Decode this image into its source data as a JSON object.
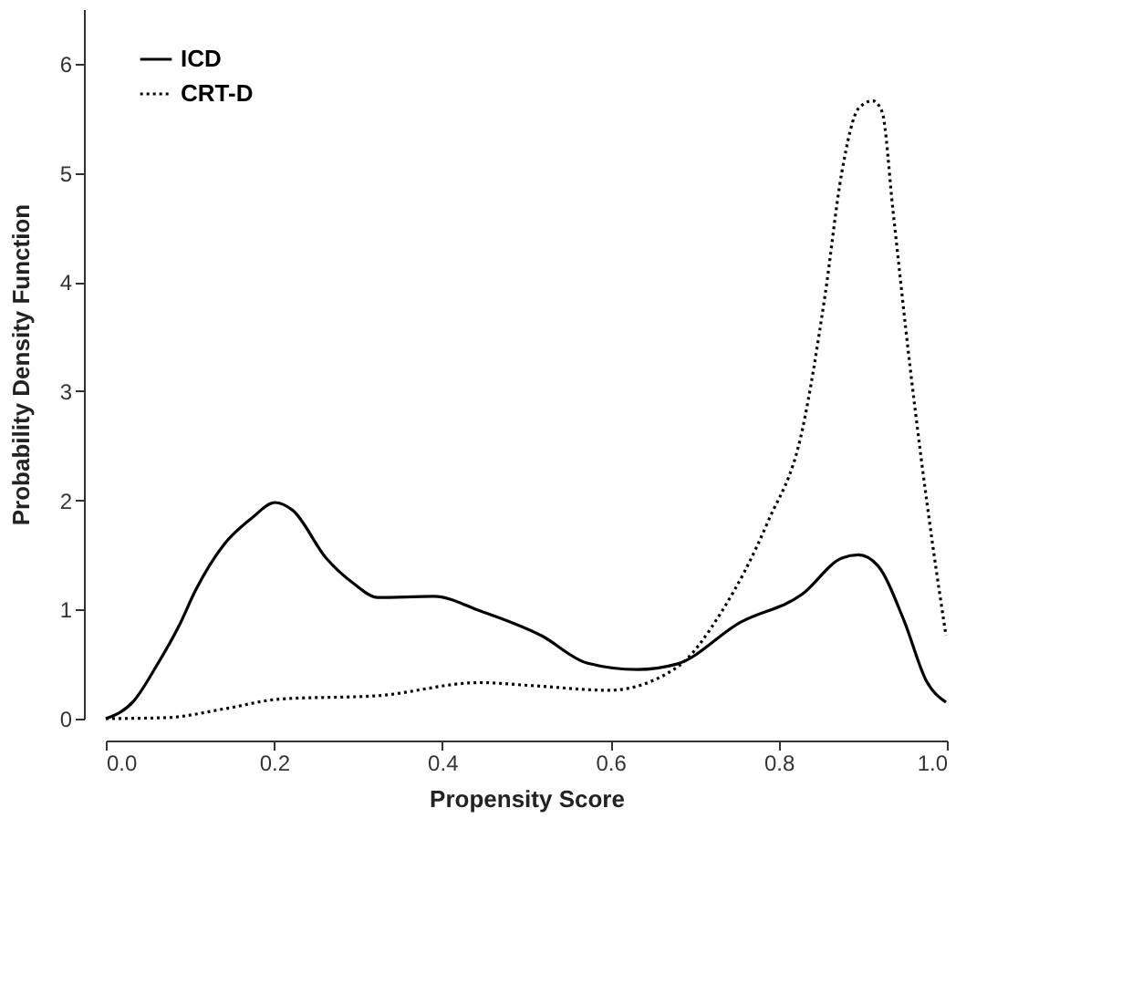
{
  "chart_data": {
    "type": "line",
    "xlabel": "Propensity Score",
    "ylabel": "Probability Density Function",
    "xlim": [
      0,
      1
    ],
    "ylim": [
      0,
      6.5
    ],
    "xticks": [
      {
        "value": 0,
        "label": "0.0"
      },
      0.2,
      0.4,
      0.6,
      0.8,
      {
        "value": 1,
        "label": "1.0"
      }
    ],
    "yticks": [
      0,
      1,
      2,
      3,
      4,
      5,
      6
    ],
    "grid": false,
    "legend": "top left",
    "marker": "none",
    "series": [
      {
        "name": "ICD",
        "color": "#000000",
        "line_style": "solid",
        "x": [
          0,
          0.033,
          0.06,
          0.087,
          0.107,
          0.141,
          0.174,
          0.201,
          0.222,
          0.262,
          0.296,
          0.323,
          0.39,
          0.444,
          0.518,
          0.572,
          0.632,
          0.679,
          0.754,
          0.828,
          0.875,
          0.895,
          0.918,
          0.949,
          0.976,
          0.999
        ],
        "values": [
          0,
          0.16,
          0.48,
          0.85,
          1.18,
          1.6,
          1.84,
          1.98,
          1.91,
          1.47,
          1.23,
          1.11,
          1.12,
          0.99,
          0.76,
          0.51,
          0.45,
          0.5,
          0.88,
          1.14,
          1.47,
          1.5,
          1.4,
          0.9,
          0.34,
          0.15
        ]
      },
      {
        "name": "CRT-D",
        "color": "#000000",
        "line_style": "dotted",
        "x": [
          0,
          0.074,
          0.141,
          0.208,
          0.323,
          0.444,
          0.511,
          0.598,
          0.679,
          0.733,
          0.787,
          0.828,
          0.855,
          0.875,
          0.895,
          0.912,
          0.923,
          0.936,
          0.956,
          0.983,
          0.999
        ],
        "values": [
          0,
          0.01,
          0.09,
          0.18,
          0.21,
          0.33,
          0.3,
          0.26,
          0.47,
          0.99,
          1.8,
          2.64,
          3.87,
          5.0,
          5.59,
          5.66,
          5.56,
          4.65,
          3.24,
          1.6,
          0.76
        ]
      }
    ]
  }
}
